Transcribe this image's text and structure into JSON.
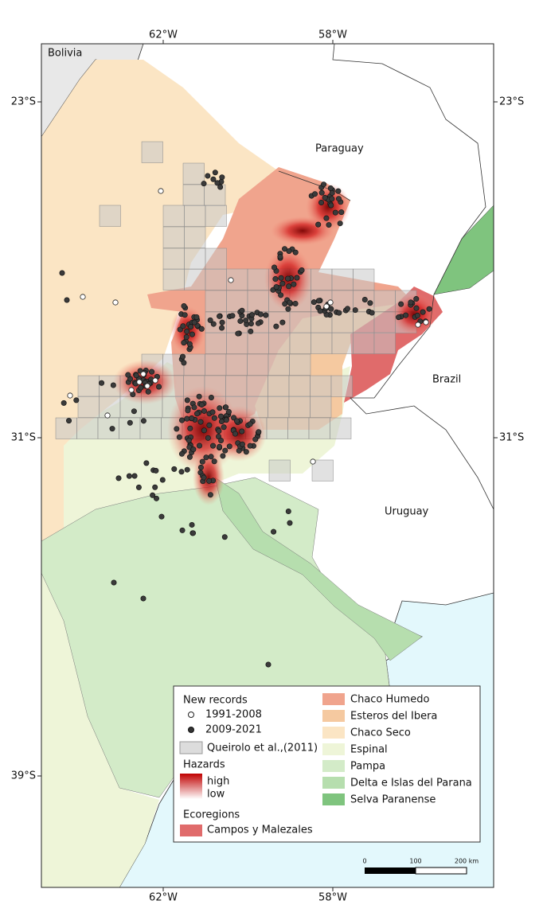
{
  "graticule": {
    "top": [
      "62°W",
      "58°W"
    ],
    "bottom": [
      "62°W",
      "58°W"
    ],
    "left": [
      "23°S",
      "31°S",
      "39°S"
    ],
    "right": [
      "23°S",
      "31°S"
    ]
  },
  "countries": [
    "Bolivia",
    "Paraguay",
    "Brazil",
    "Uruguay"
  ],
  "legend": {
    "records_title": "New records",
    "records": [
      "1991-2008",
      "2009-2021"
    ],
    "grid": "Queirolo et al.,(2011)",
    "hazards_title": "Hazards",
    "hazards": [
      "high",
      "low"
    ],
    "ecoregions_title": "Ecoregions",
    "ecoregions": [
      "Campos y Malezales",
      "Chaco Humedo",
      "Esteros del Ibera",
      "Chaco Seco",
      "Espinal",
      "Pampa",
      "Delta e Islas del Parana",
      "Selva Paranense"
    ]
  },
  "scale_bar": [
    "0",
    "100",
    "200 km"
  ]
}
